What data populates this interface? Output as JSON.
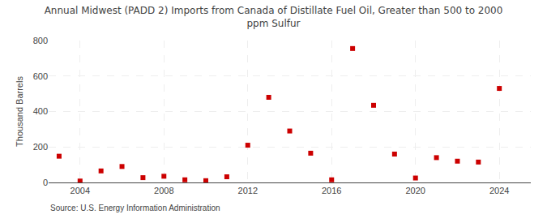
{
  "chart_data": {
    "type": "scatter",
    "title": "Annual Midwest (PADD 2) Imports from Canada of Distillate Fuel Oil, Greater than 500 to 2000\nppm Sulfur",
    "ylabel": "Thousand Barrels",
    "annotations": [
      "Source: U.S. Energy Information Administration"
    ],
    "x": [
      2003,
      2004,
      2005,
      2006,
      2007,
      2008,
      2009,
      2010,
      2011,
      2012,
      2013,
      2014,
      2015,
      2016,
      2017,
      2018,
      2019,
      2020,
      2021,
      2022,
      2023,
      2024
    ],
    "values": [
      148,
      8,
      65,
      90,
      27,
      35,
      15,
      10,
      32,
      210,
      480,
      290,
      165,
      15,
      755,
      435,
      160,
      25,
      140,
      120,
      115,
      530
    ],
    "color": "#cc0000",
    "marker": "square",
    "xlim": [
      2002.5,
      2025.5
    ],
    "xticks": [
      2004,
      2008,
      2012,
      2016,
      2020,
      2024
    ],
    "ylim": [
      0,
      800
    ],
    "yticks": [
      0,
      200,
      400,
      600,
      800
    ],
    "grid": true
  }
}
